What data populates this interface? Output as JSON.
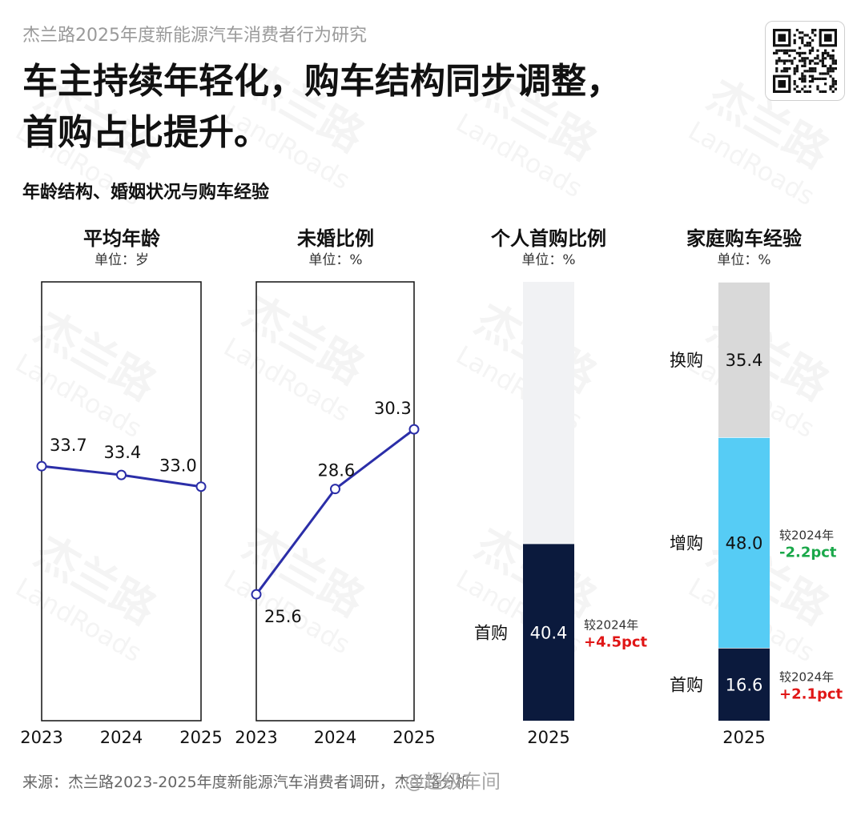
{
  "header": {
    "report_title": "杰兰路2025年度新能源汽车消费者行为研究",
    "headline_line1": "车主持续年轻化，购车结构同步调整，",
    "headline_line2": "首购占比提升。",
    "subtitle": "年龄结构、婚姻状况与购车经验"
  },
  "watermark": {
    "brand_cn": "杰兰路",
    "brand_en": "LandRoads"
  },
  "colors": {
    "line": "#2b2ea8",
    "navy": "#0b1a3d",
    "light_blue": "#56ccf5",
    "gray": "#d9d9d9",
    "light_gray": "#f1f2f4",
    "green": "#1aa84a",
    "red": "#e01616"
  },
  "panels": [
    {
      "title": "平均年龄",
      "unit": "单位：岁"
    },
    {
      "title": "未婚比例",
      "unit": "单位：%"
    },
    {
      "title": "个人首购比例",
      "unit": "单位：%"
    },
    {
      "title": "家庭购车经验",
      "unit": "单位：%"
    }
  ],
  "chart_data": [
    {
      "type": "line",
      "title": "平均年龄",
      "unit": "单位：岁",
      "x": [
        "2023",
        "2024",
        "2025"
      ],
      "values": [
        33.7,
        33.4,
        33.0
      ],
      "labels": [
        "33.7",
        "33.4",
        "33.0"
      ],
      "ylim": [
        25,
        40
      ]
    },
    {
      "type": "line",
      "title": "未婚比例",
      "unit": "单位：%",
      "x": [
        "2023",
        "2024",
        "2025"
      ],
      "values": [
        25.6,
        28.6,
        30.3
      ],
      "labels": [
        "25.6",
        "28.6",
        "30.3"
      ],
      "ylim": [
        22,
        34.5
      ]
    },
    {
      "type": "bar",
      "title": "个人首购比例",
      "unit": "单位：%",
      "categories": [
        "2025"
      ],
      "series": [
        {
          "name": "首购",
          "value": 40.4,
          "label": "40.4",
          "change_prefix": "较2024年",
          "change": "+4.5pct"
        }
      ],
      "ylim": [
        0,
        100
      ]
    },
    {
      "type": "bar",
      "title": "家庭购车经验",
      "unit": "单位：%",
      "categories": [
        "2025"
      ],
      "series": [
        {
          "name": "首购",
          "value": 16.6,
          "label": "16.6",
          "change_prefix": "较2024年",
          "change": "+2.1pct"
        },
        {
          "name": "增购",
          "value": 48.0,
          "label": "48.0",
          "change_prefix": "较2024年",
          "change": "-2.2pct"
        },
        {
          "name": "换购",
          "value": 35.4,
          "label": "35.4"
        }
      ],
      "ylim": [
        0,
        100
      ]
    }
  ],
  "footer": {
    "source": "来源：杰兰路2023-2025年度新能源汽车消费者调研，杰兰路分析",
    "weibo_mark": "@超级车间"
  }
}
